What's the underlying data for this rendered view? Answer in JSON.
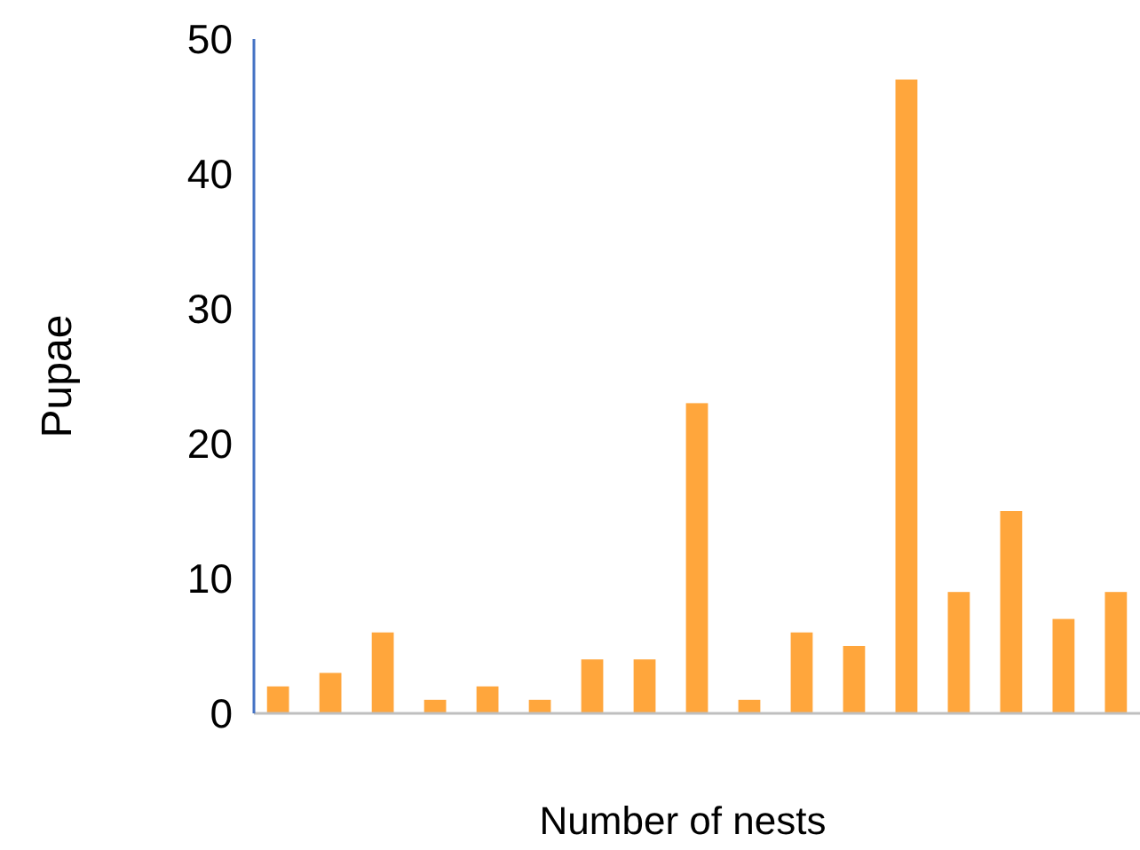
{
  "chart_data": {
    "type": "bar",
    "xlabel": "Number of nests",
    "ylabel": "Pupae",
    "categories": [
      null,
      null,
      null,
      null,
      null,
      null,
      null,
      null,
      null,
      null,
      null,
      null,
      null,
      null,
      null,
      null,
      null
    ],
    "values": [
      2,
      3,
      6,
      1,
      2,
      1,
      4,
      4,
      23,
      1,
      6,
      5,
      47,
      9,
      15,
      7,
      9
    ],
    "color": "#ffa63c",
    "ylim": [
      0,
      50
    ],
    "yticks": [
      0,
      10,
      20,
      30,
      40,
      50
    ],
    "grid": false
  }
}
